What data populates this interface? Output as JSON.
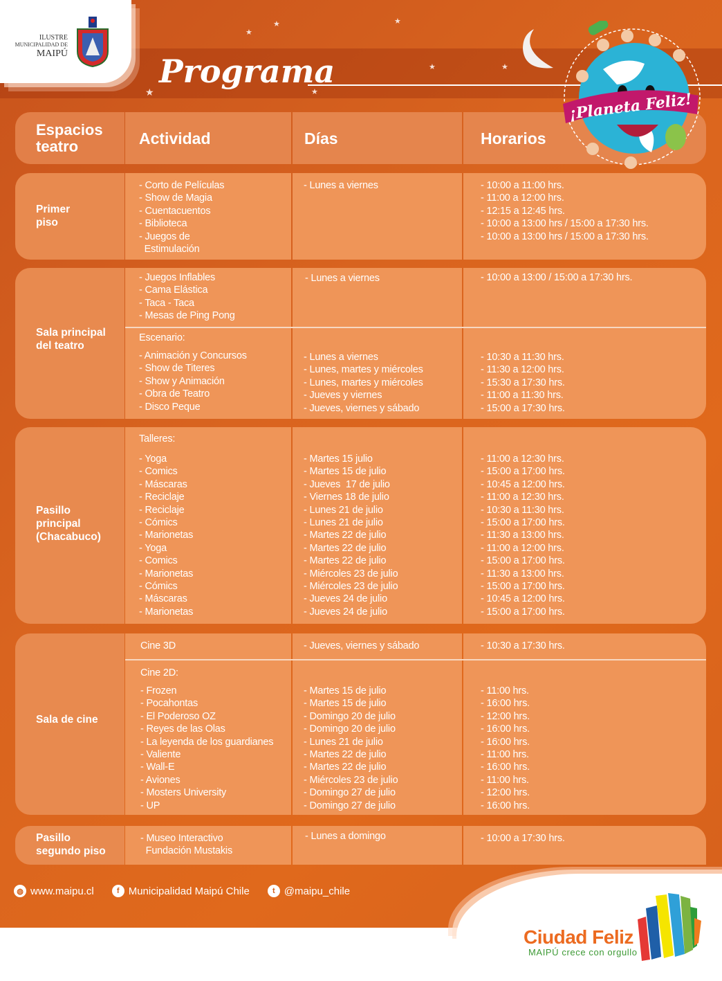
{
  "logo": {
    "line1": "ILUSTRE",
    "line2": "MUNICIPALIDAD DE",
    "line3": "MAIPÚ",
    "crest_text": "MAIPÚ"
  },
  "title": "Programa",
  "planet_logo": {
    "text": "¡Planeta Feliz!"
  },
  "colors": {
    "background": "#d9641f",
    "row_fill": "#ef9558",
    "label_fill": "#e88a4f",
    "text": "#ffffff",
    "brand_orange": "#ec6b21",
    "brand_green": "#3d9a35"
  },
  "headers": {
    "espacios": "Espacios\nteatro",
    "actividad": "Actividad",
    "dias": "Días",
    "horarios": "Horarios"
  },
  "sections": {
    "primer_piso": {
      "label": "Primer\npiso",
      "activities": [
        "- Corto de Películas",
        "- Show de Magia",
        "- Cuentacuentos",
        "- Biblioteca",
        "- Juegos de\n  Estimulación"
      ],
      "days": [
        "- Lunes a viernes"
      ],
      "times": [
        "- 10:00 a 11:00 hrs.",
        "- 11:00 a 12:00 hrs.",
        "- 12:15 a 12:45 hrs.",
        "- 10:00 a 13:00 hrs / 15:00 a 17:30 hrs.",
        "- 10:00 a 13:00 hrs / 15:00 a 17:30 hrs."
      ]
    },
    "sala_principal": {
      "label": "Sala principal\ndel teatro",
      "juegos": {
        "activities": [
          "- Juegos Inflables",
          "- Cama Elástica",
          "- Taca - Taca",
          "- Mesas de Ping Pong"
        ],
        "days": [
          "- Lunes a viernes"
        ],
        "times": [
          "- 10:00 a 13:00 / 15:00 a 17:30 hrs."
        ]
      },
      "escenario": {
        "heading": "Escenario:",
        "activities": [
          "- Animación y Concursos",
          "- Show de Titeres",
          "- Show y Animación",
          "- Obra de Teatro",
          "- Disco Peque"
        ],
        "days": [
          "- Lunes a viernes",
          "- Lunes, martes y miércoles",
          "- Lunes, martes y miércoles",
          "- Jueves y viernes",
          "- Jueves, viernes y sábado"
        ],
        "times": [
          "- 10:30 a 11:30 hrs.",
          "- 11:30 a 12:00 hrs.",
          "- 15:30 a 17:30 hrs.",
          "- 11:00 a 11:30 hrs.",
          "- 15:00 a 17:30 hrs."
        ]
      }
    },
    "pasillo_principal": {
      "label": "Pasillo\nprincipal\n(Chacabuco)",
      "heading": "Talleres:",
      "activities": [
        "- Yoga",
        "- Comics",
        "- Máscaras",
        "- Reciclaje",
        "- Reciclaje",
        "- Cómics",
        "- Marionetas",
        "- Yoga",
        "- Comics",
        "- Marionetas",
        "- Cómics",
        "- Máscaras",
        "- Marionetas"
      ],
      "days": [
        "- Martes 15 julio",
        "- Martes 15 de julio",
        "- Jueves  17 de julio",
        "- Viernes 18 de julio",
        "- Lunes 21 de julio",
        "- Lunes 21 de julio",
        "- Martes 22 de julio",
        "- Martes 22 de julio",
        "- Martes 22 de julio",
        "- Miércoles 23 de julio",
        "- Miércoles 23 de julio",
        "- Jueves 24 de julio",
        "- Jueves 24 de julio"
      ],
      "times": [
        "- 11:00 a 12:30 hrs.",
        "- 15:00 a 17:00 hrs.",
        "- 10:45 a 12:00 hrs.",
        "- 11:00 a 12:30 hrs.",
        "- 10:30 a 11:30 hrs.",
        "- 15:00 a 17:00 hrs.",
        "- 11:30 a 13:00 hrs.",
        "- 11:00 a 12:00 hrs.",
        "- 15:00 a 17:00 hrs.",
        "- 11:30 a 13:00 hrs.",
        "- 15:00 a 17:00 hrs.",
        "- 10:45 a 12:00 hrs.",
        "- 15:00 a 17:00 hrs."
      ]
    },
    "sala_cine": {
      "label": "Sala de cine",
      "cine3d": {
        "heading": "Cine 3D",
        "days": [
          "- Jueves, viernes y sábado"
        ],
        "times": [
          "- 10:30 a 17:30 hrs."
        ]
      },
      "cine2d": {
        "heading": "Cine 2D:",
        "activities": [
          "- Frozen",
          "- Pocahontas",
          "- El Poderoso OZ",
          "- Reyes de las Olas",
          "- La leyenda de los guardianes",
          "- Valiente",
          "- Wall-E",
          "- Aviones",
          "- Mosters University",
          "- UP"
        ],
        "days": [
          "- Martes 15 de julio",
          "- Martes 15 de julio",
          "- Domingo 20 de julio",
          "- Domingo 20 de julio",
          "- Lunes 21 de julio",
          "- Martes 22 de julio",
          "- Martes 22 de julio",
          "- Miércoles 23 de julio",
          "- Domingo 27 de julio",
          "- Domingo 27 de julio"
        ],
        "times": [
          "- 11:00 hrs.",
          "- 16:00 hrs.",
          "- 12:00 hrs.",
          "- 16:00 hrs.",
          "- 16:00 hrs.",
          "- 11:00 hrs.",
          "- 16:00 hrs.",
          "- 11:00 hrs.",
          "- 12:00 hrs.",
          "- 16:00 hrs."
        ]
      }
    },
    "pasillo_segundo": {
      "label": "Pasillo\nsegundo piso",
      "activities": [
        "- Museo Interactivo\n  Fundación Mustakis"
      ],
      "days": [
        "- Lunes a domingo"
      ],
      "times": [
        "- 10:00 a 17:30 hrs."
      ]
    }
  },
  "footer": {
    "web": "www.maipu.cl",
    "web_icon": "globe-icon",
    "facebook": "Municipalidad Maipú Chile",
    "facebook_icon": "facebook-icon",
    "twitter": "@maipu_chile",
    "twitter_icon": "twitter-icon"
  },
  "brand": {
    "name": "Ciudad Feliz",
    "tagline": "MAIPÚ crece con orgullo"
  }
}
